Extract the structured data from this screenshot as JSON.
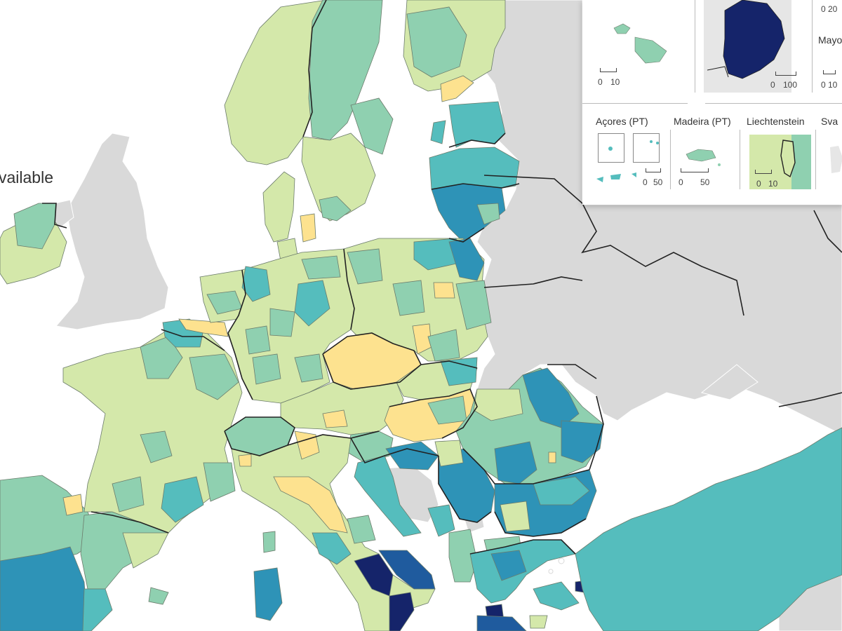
{
  "colors": {
    "sea": "#ffffff",
    "no_data": "#d9d9d9",
    "class1": "#fde28f",
    "class2": "#d4e8aa",
    "class3": "#8fd0b0",
    "class4": "#55bdbd",
    "class5": "#2e93b7",
    "class6": "#1f5b9e",
    "class7": "#15246a",
    "border": "#222222",
    "region_border": "#6b7b6b"
  },
  "legend": {
    "not_available_fragment": "vailable"
  },
  "insets": {
    "malta": {
      "scale_start": "0",
      "scale_end": "10"
    },
    "guyane": {
      "scale_start": "0",
      "scale_end": "100"
    },
    "mayotte": {
      "label": "Mayo",
      "scale_start": "0",
      "scale_end": "10",
      "top_scale": "0 20"
    },
    "acores": {
      "label": "Açores (PT)",
      "scale_start": "0",
      "scale_end": "50"
    },
    "madeira": {
      "label": "Madeira (PT)",
      "scale_start": "0",
      "scale_end": "50"
    },
    "liechtenstein": {
      "label": "Liechtenstein",
      "scale_start": "0",
      "scale_end": "10"
    },
    "svalbard": {
      "label": "Sva"
    }
  }
}
